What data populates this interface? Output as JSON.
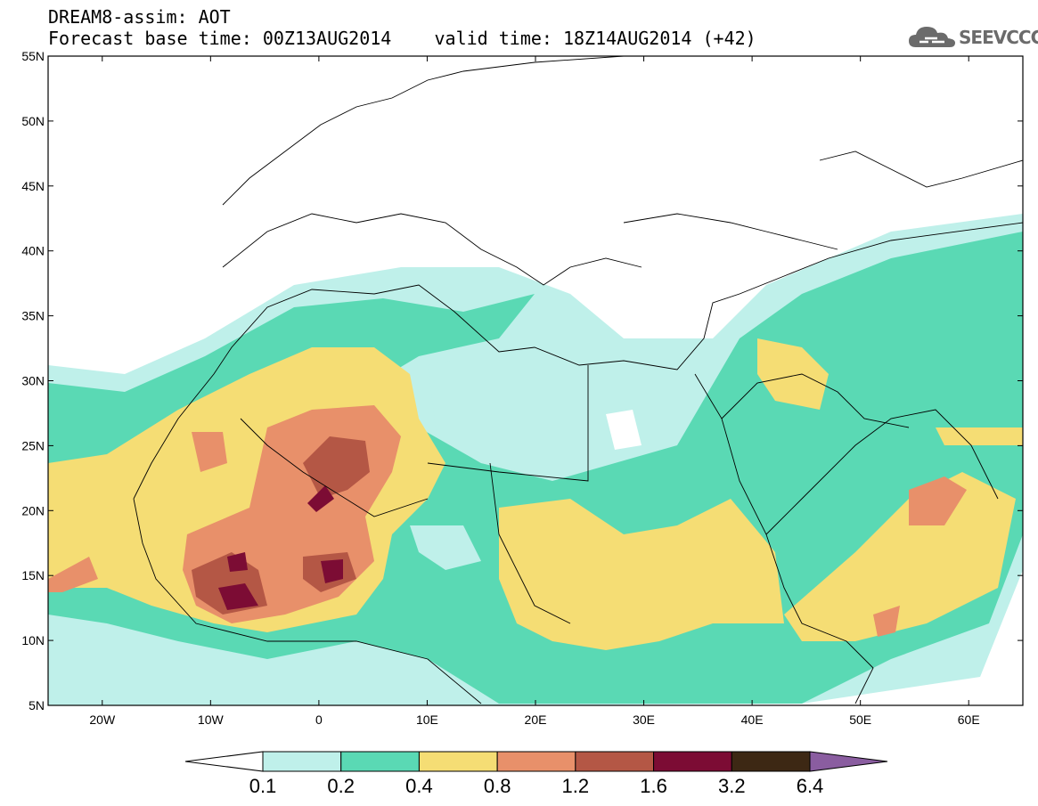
{
  "header": {
    "title": "DREAM8-assim: AOT",
    "base_time_label": "Forecast base time: 00Z13AUG2014",
    "valid_time_label": "valid time: 18Z14AUG2014 (+42)"
  },
  "logo": {
    "text": "SEEVCCC",
    "icon": "cloud-icon"
  },
  "map": {
    "lon_range": [
      -25,
      65
    ],
    "lat_range": [
      5,
      55
    ],
    "lat_labels": [
      "55N",
      "50N",
      "45N",
      "40N",
      "35N",
      "30N",
      "25N",
      "20N",
      "15N",
      "10N",
      "5N"
    ],
    "lon_labels": [
      "20W",
      "10W",
      "0",
      "10E",
      "20E",
      "30E",
      "40E",
      "50E",
      "60E"
    ]
  },
  "colorbar": {
    "labels": [
      "0.1",
      "0.2",
      "0.4",
      "0.8",
      "1.2",
      "1.6",
      "3.2",
      "6.4"
    ],
    "colors": [
      "#ffffff",
      "#bff0ea",
      "#5ad9b4",
      "#f5dd74",
      "#e8906a",
      "#b45745",
      "#7c0c34",
      "#3d2814",
      "#8a5da0"
    ]
  }
}
